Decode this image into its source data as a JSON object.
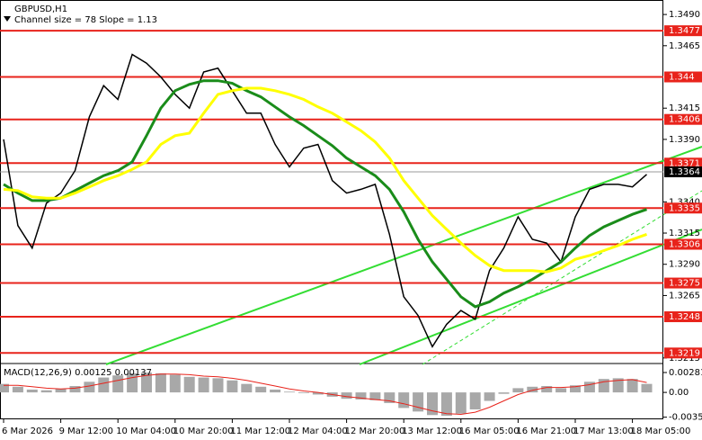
{
  "chart_data": [
    {
      "type": "line",
      "title": "GBPUSD,H1",
      "subtitle": "Channel size = 78 Slope = 1.13",
      "categories": [
        "6 Mar 2026",
        null,
        null,
        null,
        "9 Mar 12:00",
        null,
        null,
        null,
        "10 Mar 04:00",
        null,
        null,
        null,
        "10 Mar 20:00",
        null,
        null,
        null,
        "11 Mar 12:00",
        null,
        null,
        null,
        "12 Mar 04:00",
        null,
        null,
        null,
        "12 Mar 20:00",
        null,
        null,
        null,
        "13 Mar 12:00",
        null,
        null,
        null,
        "16 Mar 05:00",
        null,
        null,
        null,
        "16 Mar 21:00",
        null,
        null,
        null,
        "17 Mar 13:00",
        null,
        null,
        null,
        "18 Mar 05:00",
        null
      ],
      "series": [
        {
          "color": "#000000",
          "values": [
            1.339,
            1.3321,
            1.3303,
            1.3339,
            1.3347,
            1.3365,
            1.3408,
            1.3433,
            1.3422,
            1.3458,
            1.3451,
            1.344,
            1.3426,
            1.3415,
            1.3444,
            1.3447,
            1.3429,
            1.3411,
            1.3411,
            1.3386,
            1.3368,
            1.3383,
            1.3386,
            1.3357,
            1.3347,
            1.335,
            1.3354,
            1.3314,
            1.3264,
            1.3249,
            1.3224,
            1.3242,
            1.3253,
            1.3246,
            1.3285,
            1.3303,
            1.3328,
            1.331,
            1.3307,
            1.3292,
            1.3328,
            1.335,
            1.3354,
            1.3354,
            1.3352,
            1.3362
          ]
        },
        {
          "color": "#1a8c1a",
          "values": [
            1.3354,
            1.3347,
            1.3341,
            1.3341,
            1.3343,
            1.3349,
            1.3355,
            1.3361,
            1.3365,
            1.3372,
            1.3393,
            1.3415,
            1.3429,
            1.3434,
            1.3437,
            1.3437,
            1.3435,
            1.3429,
            1.3424,
            1.3416,
            1.3408,
            1.3401,
            1.3393,
            1.3385,
            1.3375,
            1.3368,
            1.3361,
            1.335,
            1.3332,
            1.331,
            1.3292,
            1.3278,
            1.3264,
            1.3256,
            1.326,
            1.3267,
            1.3272,
            1.3278,
            1.3285,
            1.3292,
            1.3303,
            1.3313,
            1.332,
            1.3325,
            1.333,
            1.3334
          ]
        },
        {
          "color": "#ffff00",
          "values": [
            1.335,
            1.3349,
            1.3344,
            1.3343,
            1.3343,
            1.3347,
            1.3352,
            1.3357,
            1.3361,
            1.3366,
            1.3372,
            1.3386,
            1.3393,
            1.3395,
            1.3411,
            1.3426,
            1.3429,
            1.3431,
            1.3431,
            1.3429,
            1.3426,
            1.3422,
            1.3416,
            1.3411,
            1.3404,
            1.3397,
            1.3388,
            1.3375,
            1.3357,
            1.3343,
            1.3329,
            1.3318,
            1.3307,
            1.3297,
            1.3289,
            1.3285,
            1.3285,
            1.3285,
            1.3284,
            1.3287,
            1.3294,
            1.3297,
            1.3301,
            1.3305,
            1.331,
            1.3314
          ]
        }
      ],
      "levels": [
        1.3477,
        1.344,
        1.3406,
        1.3371,
        1.3335,
        1.3306,
        1.3275,
        1.3248,
        1.3219
      ],
      "level_color": "#e8231b",
      "current_price": 1.3364,
      "ylim": [
        1.3212,
        1.3498
      ],
      "yticks": [
        {
          "value": 1.349,
          "label": "1.3490"
        },
        1.3465,
        1.3415,
        {
          "value": 1.339,
          "label": "1.3390"
        },
        {
          "value": 1.334,
          "label": "1.3340"
        },
        1.3315,
        {
          "value": 1.329,
          "label": "1.3290"
        },
        1.3265,
        1.3215
      ]
    },
    {
      "type": "bar",
      "title": "MACD(12,26,9) 0.00125 0.00137",
      "color": "#a8a8a8",
      "values": [
        0.0012,
        0.0008,
        0.0004,
        0.0003,
        0.0005,
        0.0009,
        0.0015,
        0.0021,
        0.0024,
        0.0027,
        0.0028,
        0.0027,
        0.0025,
        0.0022,
        0.0021,
        0.002,
        0.0017,
        0.0012,
        0.0008,
        0.0004,
        0.0001,
        -0.0001,
        -0.0003,
        -0.0006,
        -0.0009,
        -0.001,
        -0.0011,
        -0.0015,
        -0.0022,
        -0.0027,
        -0.0032,
        -0.0033,
        -0.003,
        -0.0024,
        -0.0012,
        -0.0002,
        0.0006,
        0.0008,
        0.0009,
        0.0006,
        0.001,
        0.0015,
        0.0019,
        0.002,
        0.0019,
        0.0012
      ],
      "series": [
        {
          "color": "#e8231b",
          "values": [
            0.001,
            0.001,
            0.0008,
            0.0006,
            0.0005,
            0.0006,
            0.0009,
            0.0013,
            0.0017,
            0.0021,
            0.0024,
            0.0026,
            0.0026,
            0.0025,
            0.0023,
            0.0022,
            0.002,
            0.0017,
            0.0013,
            0.0009,
            0.0005,
            0.0002,
            0.0,
            -0.0003,
            -0.0006,
            -0.0008,
            -0.001,
            -0.0012,
            -0.0016,
            -0.0021,
            -0.0026,
            -0.003,
            -0.0031,
            -0.0028,
            -0.0021,
            -0.0012,
            -0.0003,
            0.0003,
            0.0007,
            0.0007,
            0.0008,
            0.0011,
            0.0015,
            0.0017,
            0.0018,
            0.0014
          ]
        }
      ],
      "ylim": [
        -0.0038,
        0.0037
      ],
      "yticks": [
        0.00281,
        {
          "value": 0,
          "label": "0.00"
        },
        -0.0035
      ]
    }
  ]
}
